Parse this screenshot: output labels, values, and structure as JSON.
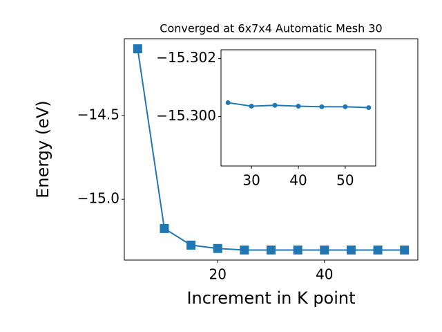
{
  "chart_data": [
    {
      "type": "line",
      "title": "Converged at 6x7x4 Automatic Mesh 30",
      "x_label": "Increment in K point",
      "y_label": "Energy (eV)",
      "x": [
        5,
        10,
        15,
        20,
        25,
        30,
        35,
        40,
        45,
        50,
        55
      ],
      "series": [
        {
          "color": "#1f77b4",
          "marker": "square",
          "values": [
            -14.103,
            -15.174,
            -15.273,
            -15.293,
            -15.302,
            -15.302,
            -15.302,
            -15.302,
            -15.302,
            -15.302,
            -15.302
          ]
        }
      ],
      "xlim": [
        2.5,
        57.5
      ],
      "ylim": [
        -15.362,
        -14.043
      ],
      "xticks": [
        20,
        40
      ],
      "yticks": [
        {
          "value": -15.0,
          "label": "−15.0"
        },
        {
          "value": -14.5,
          "label": "−14.5"
        }
      ]
    },
    {
      "type": "line",
      "x": [
        25,
        30,
        35,
        40,
        45,
        50,
        55
      ],
      "series": [
        {
          "color": "#1f77b4",
          "marker": "circle",
          "values": [
            -15.30048,
            -15.30036,
            -15.30039,
            -15.30036,
            -15.30034,
            -15.30034,
            -15.30031
          ]
        }
      ],
      "xlim": [
        23.5,
        56.5
      ],
      "ylim": [
        -15.2983,
        -15.3023
      ],
      "xticks": [
        30,
        40,
        50
      ],
      "yticks": [
        {
          "value": -15.302,
          "label": "−15.302"
        },
        {
          "value": -15.3,
          "label": "−15.300"
        }
      ]
    }
  ]
}
